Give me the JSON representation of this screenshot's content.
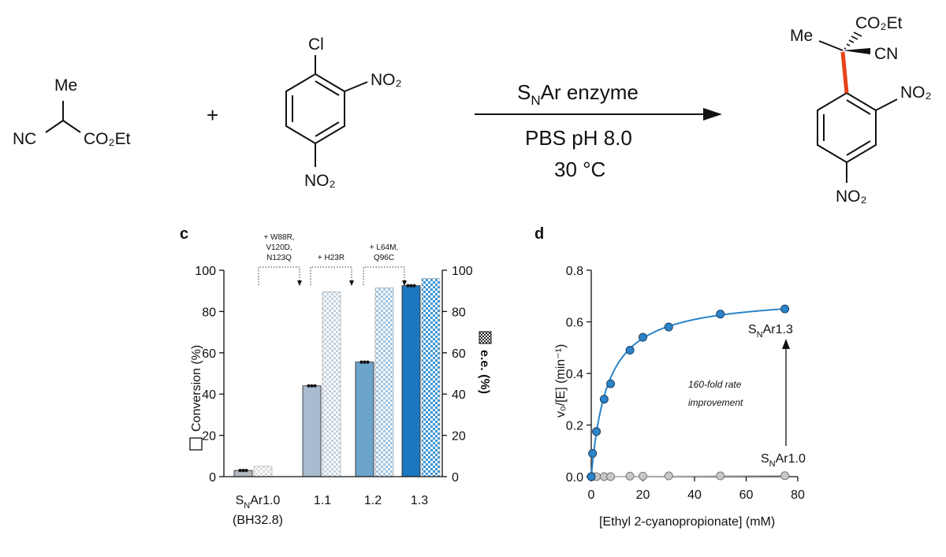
{
  "scheme": {
    "reactant1": {
      "top": "Me",
      "left": "NC",
      "right": "CO₂Et"
    },
    "plus": "+",
    "reactant2": {
      "top": "Cl",
      "ortho": "NO₂",
      "para": "NO₂"
    },
    "conditions": {
      "enzyme_main": "S",
      "enzyme_sub": "N",
      "enzyme_rest": "Ar enzyme",
      "buffer": "PBS pH 8.0",
      "temp": "30 °C"
    },
    "product": {
      "top_right": "CO₂Et",
      "left": "Me",
      "right": "CN",
      "ortho": "NO₂",
      "para": "NO₂"
    }
  },
  "panel_c": {
    "label": "c",
    "mutations": [
      {
        "lines": [
          "+ W88R,",
          "V120D,",
          "N123Q"
        ]
      },
      {
        "lines": [
          "+ H23R"
        ]
      },
      {
        "lines": [
          "+ L64M,",
          "Q96C"
        ]
      }
    ],
    "categories": [
      {
        "main": "S",
        "sub": "N",
        "rest": "Ar1.0",
        "extra": "(BH32.8)"
      },
      {
        "main": "1.1",
        "sub": "",
        "rest": "",
        "extra": ""
      },
      {
        "main": "1.2",
        "sub": "",
        "rest": "",
        "extra": ""
      },
      {
        "main": "1.3",
        "sub": "",
        "rest": "",
        "extra": ""
      }
    ]
  },
  "panel_d": {
    "label": "d",
    "annotation_lines": [
      "160-fold rate",
      "improvement"
    ],
    "label_top": {
      "main": "S",
      "sub": "N",
      "rest": "Ar1.3"
    },
    "label_bottom": {
      "main": "S",
      "sub": "N",
      "rest": "Ar1.0"
    }
  },
  "chart_data": [
    {
      "type": "bar",
      "categories": [
        "SNAr1.0 (BH32.8)",
        "1.1",
        "1.2",
        "1.3"
      ],
      "series": [
        {
          "name": "Conversion (%)",
          "values": [
            3,
            44,
            55.5,
            92.5
          ],
          "axis": "left",
          "colors": [
            "#b3b8be",
            "#a9bccf",
            "#6da4cc",
            "#1d77bf"
          ],
          "points": [
            [
              3,
              3,
              3
            ],
            [
              44,
              44,
              44
            ],
            [
              55.5,
              55.5,
              55.5
            ],
            [
              92.5,
              92.5,
              92.5
            ]
          ]
        },
        {
          "name": "e.e. (%)",
          "values": [
            5,
            89.5,
            91.5,
            96
          ],
          "axis": "right",
          "pattern": "checker",
          "colors": [
            "#dadada",
            "#c4d2de",
            "#9ec4e2",
            "#3c95d4"
          ]
        }
      ],
      "ylabel_left": "Conversion (%)",
      "ylabel_right": "e.e. (%)",
      "ylim": [
        0,
        100
      ],
      "yticks": [
        0,
        20,
        40,
        60,
        80,
        100
      ]
    },
    {
      "type": "scatter",
      "xlabel": "[Ethyl 2-cyanopropionate] (mM)",
      "ylabel": "v₀/[E] (min⁻¹)",
      "xlim": [
        0,
        80
      ],
      "ylim": [
        0,
        0.8
      ],
      "xticks": [
        0,
        20,
        40,
        60,
        80
      ],
      "yticks": [
        0,
        0.2,
        0.4,
        0.6,
        0.8
      ],
      "series": [
        {
          "name": "SNAr1.3",
          "color": "#2b84c9",
          "x": [
            0,
            0.5,
            2,
            5,
            7.5,
            15,
            20,
            30,
            50,
            75
          ],
          "y": [
            0,
            0.09,
            0.175,
            0.3,
            0.36,
            0.49,
            0.54,
            0.58,
            0.63,
            0.65
          ],
          "fit": {
            "model": "michaelis-menten",
            "vmax": 0.705,
            "km": 6.3
          }
        },
        {
          "name": "SNAr1.0",
          "color": "#c8c8c8",
          "x": [
            0,
            0.5,
            2,
            5,
            7.5,
            15,
            20,
            30,
            50,
            75
          ],
          "y": [
            0,
            0,
            0,
            0,
            0,
            0.002,
            0.002,
            0.003,
            0.003,
            0.004
          ]
        }
      ]
    }
  ]
}
